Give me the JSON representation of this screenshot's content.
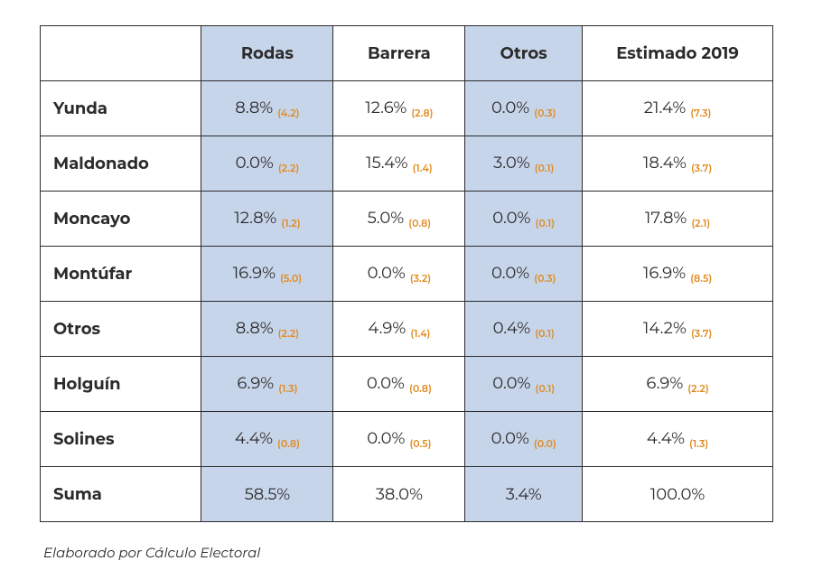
{
  "colors": {
    "highlight_bg": "#c7d5ea",
    "border": "#2b2b2b",
    "text": "#2b2b2b",
    "sub_text": "#e08a1f",
    "page_bg": "#ffffff"
  },
  "table": {
    "columns": [
      "",
      "Rodas",
      "Barrera",
      "Otros",
      "Estimado 2019"
    ],
    "highlight_columns": [
      1,
      3
    ],
    "rows": [
      {
        "label": "Yunda",
        "cells": [
          {
            "v": "8.8%",
            "s": "(4.2)"
          },
          {
            "v": "12.6%",
            "s": "(2.8)"
          },
          {
            "v": "0.0%",
            "s": "(0.3)"
          },
          {
            "v": "21.4%",
            "s": "(7.3)"
          }
        ]
      },
      {
        "label": "Maldonado",
        "cells": [
          {
            "v": "0.0%",
            "s": "(2.2)"
          },
          {
            "v": "15.4%",
            "s": "(1.4)"
          },
          {
            "v": "3.0%",
            "s": "(0.1)"
          },
          {
            "v": "18.4%",
            "s": "(3.7)"
          }
        ]
      },
      {
        "label": "Moncayo",
        "cells": [
          {
            "v": "12.8%",
            "s": "(1.2)"
          },
          {
            "v": "5.0%",
            "s": "(0.8)"
          },
          {
            "v": "0.0%",
            "s": "(0.1)"
          },
          {
            "v": "17.8%",
            "s": "(2.1)"
          }
        ]
      },
      {
        "label": "Montúfar",
        "cells": [
          {
            "v": "16.9%",
            "s": "(5.0)"
          },
          {
            "v": "0.0%",
            "s": "(3.2)"
          },
          {
            "v": "0.0%",
            "s": "(0.3)"
          },
          {
            "v": "16.9%",
            "s": "(8.5)"
          }
        ]
      },
      {
        "label": "Otros",
        "cells": [
          {
            "v": "8.8%",
            "s": "(2.2)"
          },
          {
            "v": "4.9%",
            "s": "(1.4)"
          },
          {
            "v": "0.4%",
            "s": "(0.1)"
          },
          {
            "v": "14.2%",
            "s": "(3.7)"
          }
        ]
      },
      {
        "label": "Holguín",
        "cells": [
          {
            "v": "6.9%",
            "s": "(1.3)"
          },
          {
            "v": "0.0%",
            "s": "(0.8)"
          },
          {
            "v": "0.0%",
            "s": "(0.1)"
          },
          {
            "v": "6.9%",
            "s": "(2.2)"
          }
        ]
      },
      {
        "label": "Solines",
        "cells": [
          {
            "v": "4.4%",
            "s": "(0.8)"
          },
          {
            "v": "0.0%",
            "s": "(0.5)"
          },
          {
            "v": "0.0%",
            "s": "(0.0)"
          },
          {
            "v": "4.4%",
            "s": "(1.3)"
          }
        ]
      }
    ],
    "sum_row": {
      "label": "Suma",
      "cells": [
        "58.5%",
        "38.0%",
        "3.4%",
        "100.0%"
      ]
    }
  },
  "footnote": "Elaborado por Cálculo Electoral"
}
